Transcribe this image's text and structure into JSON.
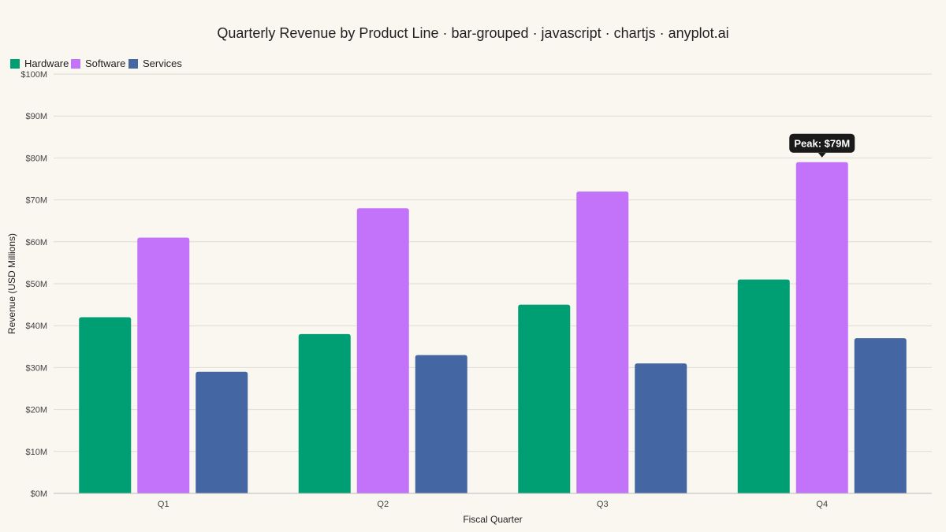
{
  "chart_data": {
    "type": "bar",
    "title": "Quarterly Revenue by Product Line · bar-grouped · javascript · chartjs · anyplot.ai",
    "xlabel": "Fiscal Quarter",
    "ylabel": "Revenue (USD Millions)",
    "categories": [
      "Q1",
      "Q2",
      "Q3",
      "Q4"
    ],
    "series": [
      {
        "name": "Hardware",
        "color": "#009e73",
        "values": [
          42,
          38,
          45,
          51
        ]
      },
      {
        "name": "Software",
        "color": "#c273fa",
        "values": [
          61,
          68,
          72,
          79
        ]
      },
      {
        "name": "Services",
        "color": "#4467a3",
        "values": [
          29,
          33,
          31,
          37
        ]
      }
    ],
    "ylim": [
      0,
      100
    ],
    "y_ticks": [
      0,
      10,
      20,
      30,
      40,
      50,
      60,
      70,
      80,
      90,
      100
    ],
    "y_tick_labels": [
      "$0M",
      "$10M",
      "$20M",
      "$30M",
      "$40M",
      "$50M",
      "$60M",
      "$70M",
      "$80M",
      "$90M",
      "$100M"
    ],
    "grid": true,
    "legend_position": "top-left",
    "annotation": {
      "text": "Peak: $79M",
      "category": "Q4",
      "series": "Software",
      "value": 79,
      "background": "#1a1a1a"
    }
  }
}
